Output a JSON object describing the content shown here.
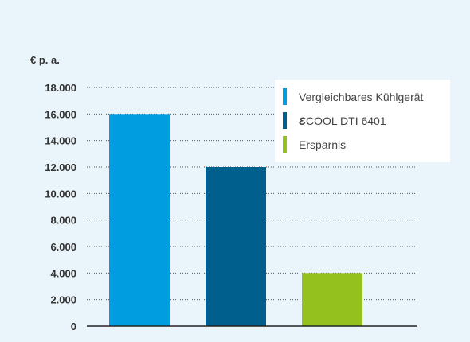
{
  "chart_data": {
    "type": "bar",
    "ylabel": "€ p. a.",
    "ylim": [
      0,
      18000
    ],
    "yticks": [
      {
        "value": 0,
        "label": "0"
      },
      {
        "value": 2000,
        "label": "2.000"
      },
      {
        "value": 4000,
        "label": "4.000"
      },
      {
        "value": 6000,
        "label": "6.000"
      },
      {
        "value": 8000,
        "label": "8.000"
      },
      {
        "value": 10000,
        "label": "10.000"
      },
      {
        "value": 12000,
        "label": "12.000"
      },
      {
        "value": 14000,
        "label": "14.000"
      },
      {
        "value": 16000,
        "label": "16.000"
      },
      {
        "value": 18000,
        "label": "18.000"
      }
    ],
    "grid": true,
    "legend_position": "top-right",
    "series": [
      {
        "name": "Vergleichbares Kühlgerät",
        "value": 16000,
        "color": "#009ee0"
      },
      {
        "name": "COOL DTI 6401",
        "prefix_glyph": "Ɛ",
        "value": 12000,
        "color": "#005f8c"
      },
      {
        "name": "Ersparnis",
        "value": 4000,
        "color": "#95c11f"
      }
    ]
  }
}
